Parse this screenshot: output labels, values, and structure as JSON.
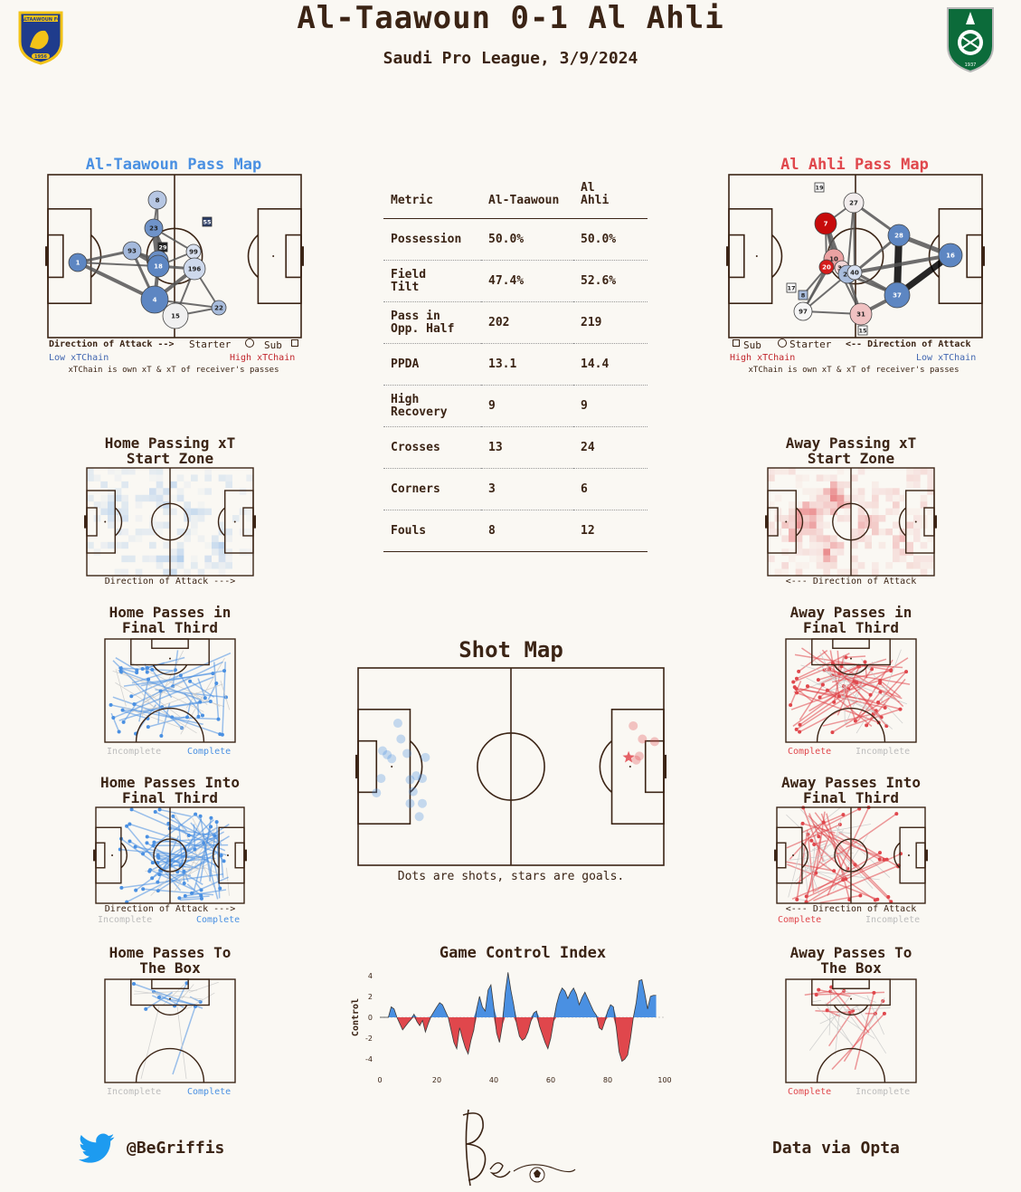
{
  "header": {
    "title": "Al-Taawoun 0-1 Al Ahli",
    "subtitle": "Saudi Pro League, 3/9/2024",
    "home_badge_text": "ALTAAWOUN FC",
    "home_badge_year": "1956",
    "away_badge_year": "1937"
  },
  "colors": {
    "home": "#4a90e2",
    "away": "#e0474c",
    "ink": "#3b2415",
    "bg": "#faf8f3"
  },
  "home_pass_map": {
    "title": "Al-Taawoun Pass Map",
    "legend_direction": "Direction of Attack -->",
    "legend_starter": "Starter",
    "legend_sub": "Sub",
    "low_label": "Low xTChain",
    "high_label": "High xTChain",
    "note": "xTChain is own xT & xT of receiver's passes",
    "players": [
      "1",
      "93",
      "23",
      "8",
      "29",
      "24",
      "18",
      "4",
      "15",
      "22",
      "99",
      "196",
      "55"
    ]
  },
  "away_pass_map": {
    "title": "Al Ahli Pass Map",
    "legend_direction": "<-- Direction of Attack",
    "legend_starter": "Starter",
    "legend_sub": "Sub",
    "low_label": "Low xTChain",
    "high_label": "High xTChain",
    "note": "xTChain is own xT & xT of receiver's passes",
    "players": [
      "19",
      "27",
      "7",
      "28",
      "16",
      "10",
      "20",
      "30",
      "29",
      "40",
      "37",
      "17",
      "8",
      "97",
      "31",
      "15"
    ]
  },
  "metrics": {
    "headers": [
      "Metric",
      "Al-Taawoun",
      "Al\nAhli"
    ],
    "rows": [
      {
        "metric": "Possession",
        "home": "50.0%",
        "away": "50.0%"
      },
      {
        "metric": "Field\nTilt",
        "home": "47.4%",
        "away": "52.6%"
      },
      {
        "metric": "Pass in\nOpp. Half",
        "home": "202",
        "away": "219"
      },
      {
        "metric": "PPDA",
        "home": "13.1",
        "away": "14.4"
      },
      {
        "metric": "High\nRecovery",
        "home": "9",
        "away": "9"
      },
      {
        "metric": "Crosses",
        "home": "13",
        "away": "24"
      },
      {
        "metric": "Corners",
        "home": "3",
        "away": "6"
      },
      {
        "metric": "Fouls",
        "home": "8",
        "away": "12"
      }
    ]
  },
  "panels": {
    "home_xt": {
      "title": "Home Passing xT\nStart Zone",
      "caption": "Direction of Attack --->"
    },
    "away_xt": {
      "title": "Away Passing xT\nStart Zone",
      "caption": "<--- Direction of Attack"
    },
    "home_final_third": {
      "title": "Home Passes in\nFinal Third",
      "incomplete": "Incomplete",
      "complete": "Complete"
    },
    "away_final_third": {
      "title": "Away Passes in\nFinal Third",
      "incomplete": "Incomplete",
      "complete": "Complete"
    },
    "home_into_final": {
      "title": "Home Passes Into\nFinal Third",
      "caption": "Direction of Attack --->",
      "incomplete": "Incomplete",
      "complete": "Complete"
    },
    "away_into_final": {
      "title": "Away Passes Into\nFinal Third",
      "caption": "<--- Direction of Attack",
      "incomplete": "Incomplete",
      "complete": "Complete"
    },
    "home_box": {
      "title": "Home Passes To\nThe Box",
      "incomplete": "Incomplete",
      "complete": "Complete"
    },
    "away_box": {
      "title": "Away Passes To\nThe Box",
      "incomplete": "Incomplete",
      "complete": "Complete"
    }
  },
  "shot_map": {
    "title": "Shot Map",
    "caption": "Dots are shots, stars are goals."
  },
  "footer": {
    "handle": "@BeGriffis",
    "source": "Data via Opta"
  },
  "chart_data": [
    {
      "type": "scatter",
      "title": "Shot Map",
      "series": [
        {
          "name": "Al-Taawoun",
          "x": [
            8.0,
            9.5,
            11,
            7.5,
            6,
            18,
            20,
            17,
            21,
            19,
            17,
            21,
            22,
            16,
            14,
            13
          ],
          "y": [
            63,
            66,
            69,
            84,
            95,
            94,
            113,
            103,
            103,
            82,
            85,
            84,
            68,
            65,
            54,
            42
          ]
        },
        {
          "name": "Al Ahli",
          "x": [
            97,
            93,
            92,
            90,
            91,
            88.5
          ],
          "y": [
            56,
            54,
            67,
            44,
            70,
            68
          ],
          "goal": [
            false,
            false,
            false,
            false,
            false,
            true
          ]
        }
      ]
    },
    {
      "type": "area",
      "title": "Game Control Index",
      "xlabel": "",
      "ylabel": "Control",
      "xlim": [
        0,
        100
      ],
      "ylim": [
        -4.5,
        4.5
      ],
      "x_ticks": [
        0,
        20,
        40,
        60,
        80,
        100
      ],
      "y_ticks": [
        4,
        2,
        0,
        -2,
        -4
      ],
      "x": [
        0,
        3,
        4,
        5,
        6,
        7,
        8,
        10,
        11,
        12,
        13,
        14,
        15,
        16,
        17,
        18,
        20,
        21,
        22,
        23,
        24,
        25,
        26,
        27,
        28,
        29,
        30,
        31,
        32,
        33,
        34,
        35,
        36,
        37,
        38,
        39,
        40,
        41,
        42,
        43,
        44,
        45,
        46,
        47,
        48,
        49,
        50,
        51,
        52,
        53,
        54,
        55,
        56,
        57,
        58,
        59,
        60,
        61,
        62,
        63,
        64,
        65,
        66,
        67,
        68,
        69,
        70,
        71,
        72,
        73,
        74,
        75,
        76,
        77,
        78,
        79,
        80,
        81,
        82,
        83,
        84,
        85,
        86,
        87,
        88,
        89,
        90,
        91,
        92,
        93,
        94,
        95,
        96,
        97
      ],
      "y": [
        0,
        0,
        1.0,
        0.8,
        0,
        -0.6,
        -1.2,
        -0.5,
        -0.2,
        0.3,
        -0.4,
        -0.8,
        -0.3,
        -1.4,
        -0.6,
        0.1,
        1.0,
        1.4,
        1.2,
        0.6,
        0,
        -1.2,
        -2.4,
        -3.0,
        -1.0,
        -2.0,
        -2.9,
        -3.5,
        -2.2,
        -1.2,
        0.8,
        2.0,
        1.0,
        0.6,
        2.6,
        3.1,
        1.0,
        -1.5,
        -2.4,
        -0.8,
        2.3,
        4.3,
        2.6,
        1.2,
        -0.6,
        -1.8,
        -2.2,
        -2.0,
        -1.4,
        -0.4,
        0.4,
        0.6,
        -0.8,
        -1.6,
        -2.4,
        -3.0,
        -2.0,
        -0.4,
        1.2,
        2.2,
        2.8,
        2.5,
        1.8,
        2.4,
        2.8,
        2.2,
        1.2,
        1.9,
        2.4,
        1.8,
        1.2,
        0.6,
        0.2,
        -1.0,
        -1.2,
        -0.4,
        0.6,
        1.2,
        1.0,
        -1.0,
        -3.3,
        -4.2,
        -4.0,
        -3.6,
        -2.0,
        0,
        1.4,
        3.5,
        3.6,
        2.3,
        0.8,
        2.0,
        2.1,
        2.1
      ]
    }
  ]
}
